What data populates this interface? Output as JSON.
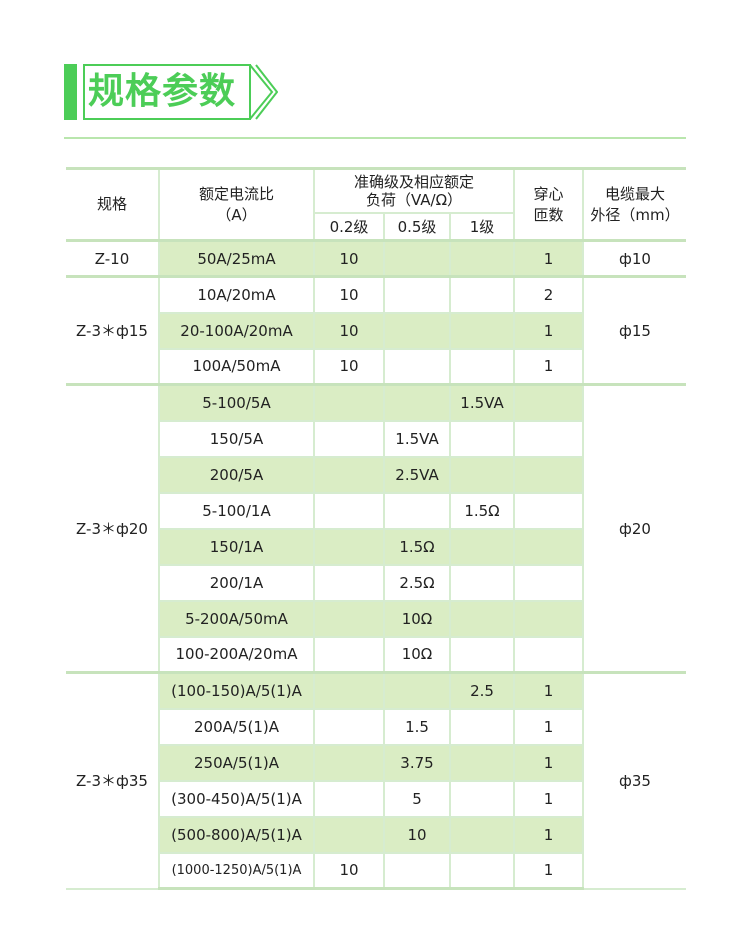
{
  "page": {
    "title": "规格参数",
    "accent_color": "#4ccd57",
    "highlight_color": "#daedc4"
  },
  "table": {
    "headers": {
      "spec": "规格",
      "ratio_line1": "额定电流比",
      "ratio_line2": "（A）",
      "accuracy_line1": "准确级及相应额定",
      "accuracy_line2": "负荷（VA/Ω）",
      "class_02": "0.2级",
      "class_05": "0.5级",
      "class_1": "1级",
      "turns_line1": "穿心",
      "turns_line2": "匝数",
      "cable_line1": "电缆最大",
      "cable_line2": "外径（mm）"
    },
    "groups": [
      {
        "spec": "Z-10",
        "cable": "ф10",
        "rows": [
          {
            "ratio": "50A/25mA",
            "c02": "10",
            "c05": "",
            "c1": "",
            "turns": "1"
          }
        ]
      },
      {
        "spec": "Z-3＊ф15",
        "cable": "ф15",
        "rows": [
          {
            "ratio": "10A/20mA",
            "c02": "10",
            "c05": "",
            "c1": "",
            "turns": "2"
          },
          {
            "ratio": "20-100A/20mA",
            "c02": "10",
            "c05": "",
            "c1": "",
            "turns": "1"
          },
          {
            "ratio": "100A/50mA",
            "c02": "10",
            "c05": "",
            "c1": "",
            "turns": "1"
          }
        ]
      },
      {
        "spec": "Z-3＊ф20",
        "cable": "ф20",
        "rows": [
          {
            "ratio": "5-100/5A",
            "c02": "",
            "c05": "",
            "c1": "1.5VA",
            "turns": ""
          },
          {
            "ratio": "150/5A",
            "c02": "",
            "c05": "1.5VA",
            "c1": "",
            "turns": ""
          },
          {
            "ratio": "200/5A",
            "c02": "",
            "c05": "2.5VA",
            "c1": "",
            "turns": ""
          },
          {
            "ratio": "5-100/1A",
            "c02": "",
            "c05": "",
            "c1": "1.5Ω",
            "turns": ""
          },
          {
            "ratio": "150/1A",
            "c02": "",
            "c05": "1.5Ω",
            "c1": "",
            "turns": ""
          },
          {
            "ratio": "200/1A",
            "c02": "",
            "c05": "2.5Ω",
            "c1": "",
            "turns": ""
          },
          {
            "ratio": "5-200A/50mA",
            "c02": "",
            "c05": "10Ω",
            "c1": "",
            "turns": ""
          },
          {
            "ratio": "100-200A/20mA",
            "c02": "",
            "c05": "10Ω",
            "c1": "",
            "turns": ""
          }
        ]
      },
      {
        "spec": "Z-3＊ф35",
        "cable": "ф35",
        "rows": [
          {
            "ratio": "(100-150)A/5(1)A",
            "c02": "",
            "c05": "",
            "c1": "2.5",
            "turns": "1"
          },
          {
            "ratio": "200A/5(1)A",
            "c02": "",
            "c05": "1.5",
            "c1": "",
            "turns": "1"
          },
          {
            "ratio": "250A/5(1)A",
            "c02": "",
            "c05": "3.75",
            "c1": "",
            "turns": "1"
          },
          {
            "ratio": "(300-450)A/5(1)A",
            "c02": "",
            "c05": "5",
            "c1": "",
            "turns": "1"
          },
          {
            "ratio": "(500-800)A/5(1)A",
            "c02": "",
            "c05": "10",
            "c1": "",
            "turns": "1"
          },
          {
            "ratio": "(1000-1250)A/5(1)A",
            "c02": "10",
            "c05": "",
            "c1": "",
            "turns": "1"
          }
        ]
      }
    ]
  }
}
